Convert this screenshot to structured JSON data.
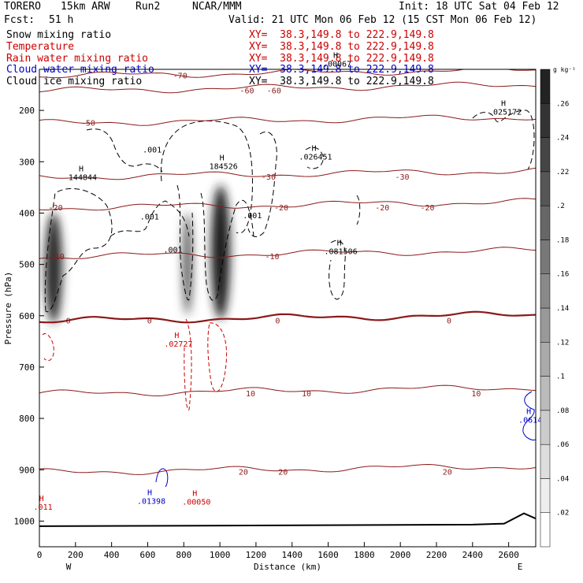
{
  "header": {
    "model": "TORERO",
    "resolution": "15km ARW",
    "run": "Run2",
    "center": "NCAR/MMM",
    "init": "Init: 18 UTC Sat 04 Feb 12",
    "fcst_label": "Fcst:",
    "fcst_value": "51 h",
    "valid": "Valid: 21 UTC Mon 06 Feb 12 (15 CST Mon 06 Feb 12)"
  },
  "fields": [
    {
      "name": "Snow mixing ratio",
      "color": "#000000",
      "xy": "XY=  38.3,149.8 to 222.9,149.8"
    },
    {
      "name": "Temperature",
      "color": "#cc0000",
      "xy": "XY=  38.3,149.8 to 222.9,149.8"
    },
    {
      "name": "Rain water mixing ratio",
      "color": "#cc0000",
      "xy": "XY=  38.3,149.8 to 222.9,149.8"
    },
    {
      "name": "Cloud water mixing ratio",
      "color": "#0000cc",
      "xy": "XY=  38.3,149.8 to 222.9,149.8"
    },
    {
      "name": "Cloud ice mixing ratio",
      "color": "#000000",
      "xy": "XY=  38.3,149.8 to 222.9,149.8"
    }
  ],
  "chart_data": {
    "type": "cross-section",
    "xlabel": "Distance (km)",
    "ylabel": "Pressure (hPa)",
    "xlim": [
      0,
      2750
    ],
    "ylim": [
      1050,
      120
    ],
    "x_ticks": [
      0,
      200,
      400,
      600,
      800,
      1000,
      1200,
      1400,
      1600,
      1800,
      2000,
      2200,
      2400,
      2600
    ],
    "y_ticks": [
      200,
      300,
      400,
      500,
      600,
      700,
      800,
      900,
      1000
    ],
    "x_end_labels": {
      "left": "W",
      "right": "E"
    },
    "colorbar": {
      "unit": "g kg⁻¹",
      "ticks": [
        ".02",
        ".04",
        ".06",
        ".08",
        ".1",
        ".12",
        ".14",
        ".16",
        ".18",
        ".2",
        ".22",
        ".24",
        ".26"
      ],
      "min": 0,
      "max": 0.28
    },
    "temperature_contours": [
      {
        "level": "-70",
        "pressure": 133,
        "labels": [
          {
            "x": 780,
            "text": "-70"
          }
        ]
      },
      {
        "level": "-60",
        "pressure": 162,
        "labels": [
          {
            "x": 1150,
            "text": "-60"
          },
          {
            "x": 1300,
            "text": "-60"
          }
        ]
      },
      {
        "level": "-50",
        "pressure": 225,
        "labels": [
          {
            "x": 270,
            "text": "-50"
          }
        ]
      },
      {
        "level": "-30",
        "pressure": 330,
        "labels": [
          {
            "x": 1270,
            "text": "-30"
          },
          {
            "x": 2010,
            "text": "-30"
          }
        ]
      },
      {
        "level": "-20",
        "pressure": 390,
        "labels": [
          {
            "x": 90,
            "text": "-20"
          },
          {
            "x": 1340,
            "text": "-20"
          },
          {
            "x": 1900,
            "text": "-20"
          },
          {
            "x": 2150,
            "text": "-20"
          }
        ]
      },
      {
        "level": "-10",
        "pressure": 485,
        "labels": [
          {
            "x": 100,
            "text": "-10"
          },
          {
            "x": 1290,
            "text": "-10"
          }
        ]
      },
      {
        "level": "0",
        "pressure": 610,
        "labels": [
          {
            "x": 160,
            "text": "0"
          },
          {
            "x": 610,
            "text": "0"
          },
          {
            "x": 1320,
            "text": "0"
          },
          {
            "x": 2270,
            "text": "0"
          }
        ]
      },
      {
        "level": "10",
        "pressure": 752,
        "labels": [
          {
            "x": 1170,
            "text": "10"
          },
          {
            "x": 1480,
            "text": "10"
          },
          {
            "x": 2420,
            "text": "10"
          }
        ]
      },
      {
        "level": "20",
        "pressure": 905,
        "labels": [
          {
            "x": 1130,
            "text": "20"
          },
          {
            "x": 1350,
            "text": "20"
          },
          {
            "x": 2260,
            "text": "20"
          }
        ]
      }
    ],
    "maxima_labels": [
      {
        "x": 240,
        "p": 336,
        "text": "144844",
        "color": "#000000"
      },
      {
        "x": 1020,
        "p": 314,
        "text": "184526",
        "color": "#000000"
      },
      {
        "x": 1530,
        "p": 296,
        "text": ".026451",
        "color": "#000000"
      },
      {
        "x": 2580,
        "p": 208,
        "text": ".025172",
        "color": "#000000"
      },
      {
        "x": 1670,
        "p": 480,
        "text": ".081506",
        "color": "#000000"
      },
      {
        "x": 1650,
        "p": 115,
        "text": ".00067",
        "color": "#000000"
      },
      {
        "x": 770,
        "p": 660,
        "text": ".02727",
        "color": "#cc0000"
      },
      {
        "x": 870,
        "p": 968,
        "text": ".00050",
        "color": "#cc0000"
      },
      {
        "x": 620,
        "p": 966,
        "text": ".01398",
        "color": "#0000cc"
      },
      {
        "x": 2720,
        "p": 808,
        "text": ".0614",
        "color": "#0000cc"
      },
      {
        "x": 20,
        "p": 978,
        "text": ".011",
        "color": "#cc0000"
      }
    ],
    "contour_labels": [
      {
        "x": 625,
        "p": 282,
        "text": ".001"
      },
      {
        "x": 610,
        "p": 412,
        "text": ".001"
      },
      {
        "x": 740,
        "p": 477,
        "text": ".001"
      },
      {
        "x": 1180,
        "p": 410,
        "text": ".001"
      }
    ]
  }
}
